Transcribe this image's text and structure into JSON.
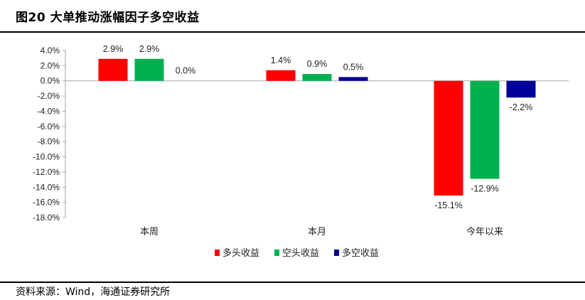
{
  "header": {
    "title": "图20 大单推动涨幅因子多空收益"
  },
  "footer": {
    "source": "资料来源：Wind，海通证券研究所"
  },
  "chart_data": {
    "type": "bar",
    "title": "图20 大单推动涨幅因子多空收益",
    "categories": [
      "本周",
      "本月",
      "今年以来"
    ],
    "series": [
      {
        "name": "多头收益",
        "color": "#ff0000",
        "values": [
          2.9,
          1.4,
          -15.1
        ],
        "labels": [
          "2.9%",
          "1.4%",
          "-15.1%"
        ]
      },
      {
        "name": "空头收益",
        "color": "#00b050",
        "values": [
          2.9,
          0.9,
          -12.9
        ],
        "labels": [
          "2.9%",
          "0.9%",
          "-12.9%"
        ]
      },
      {
        "name": "多空收益",
        "color": "#000099",
        "values": [
          0.0,
          0.5,
          -2.2
        ],
        "labels": [
          "0.0%",
          "0.5%",
          "-2.2%"
        ]
      }
    ],
    "yticks": [
      "4.0%",
      "2.0%",
      "0.0%",
      "-2.0%",
      "-4.0%",
      "-6.0%",
      "-8.0%",
      "-10.0%",
      "-12.0%",
      "-14.0%",
      "-16.0%",
      "-18.0%"
    ],
    "ylim": [
      -18,
      4
    ],
    "ylabel": "",
    "xlabel": "",
    "grid": false,
    "legend": "bottom"
  }
}
